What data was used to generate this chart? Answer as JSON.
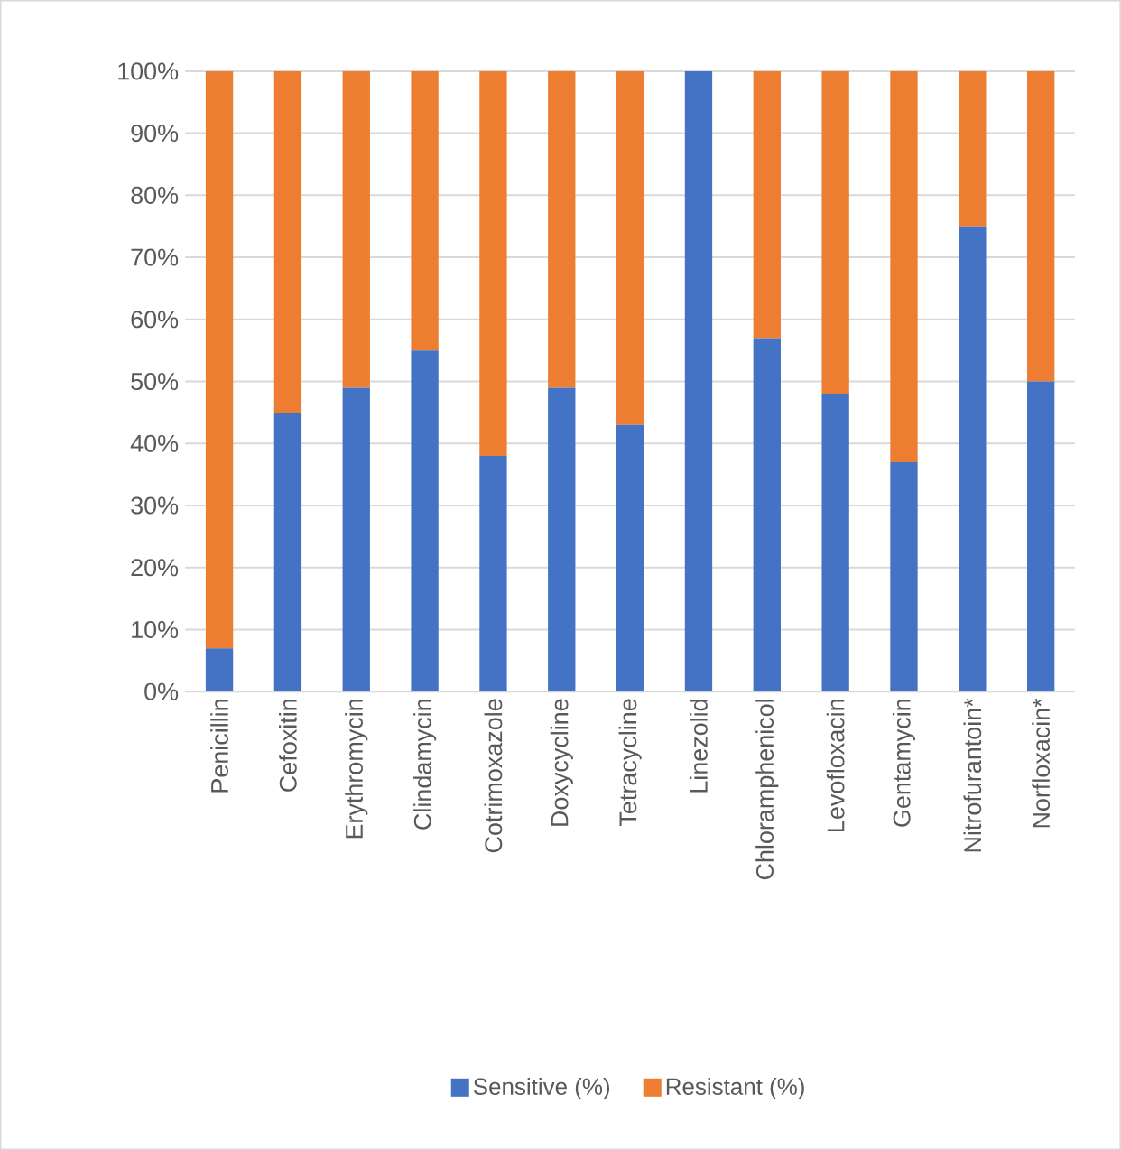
{
  "chart_data": {
    "type": "bar",
    "stacked": true,
    "categories": [
      "Penicillin",
      "Cefoxitin",
      "Erythromycin",
      "Clindamycin",
      "Cotrimoxazole",
      "Doxycycline",
      "Tetracycline",
      "Linezolid",
      "Chloramphenicol",
      "Levofloxacin",
      "Gentamycin",
      "Nitrofurantoin*",
      "Norfloxacin*"
    ],
    "series": [
      {
        "name": "Sensitive (%)",
        "color": "#4472c4",
        "values": [
          7,
          45,
          49,
          55,
          38,
          49,
          43,
          100,
          57,
          48,
          37,
          75,
          50
        ]
      },
      {
        "name": "Resistant (%)",
        "color": "#ed7d31",
        "values": [
          93,
          55,
          51,
          45,
          62,
          51,
          57,
          0,
          43,
          52,
          63,
          25,
          50
        ]
      }
    ],
    "ylim": [
      0,
      100
    ],
    "yticks": [
      {
        "value": 0,
        "label": "0%"
      },
      {
        "value": 10,
        "label": "10%"
      },
      {
        "value": 20,
        "label": "20%"
      },
      {
        "value": 30,
        "label": "30%"
      },
      {
        "value": 40,
        "label": "40%"
      },
      {
        "value": 50,
        "label": "50%"
      },
      {
        "value": 60,
        "label": "60%"
      },
      {
        "value": 70,
        "label": "70%"
      },
      {
        "value": 80,
        "label": "80%"
      },
      {
        "value": 90,
        "label": "90%"
      },
      {
        "value": 100,
        "label": "100%"
      }
    ],
    "grid": "y",
    "legend": "bottom"
  }
}
